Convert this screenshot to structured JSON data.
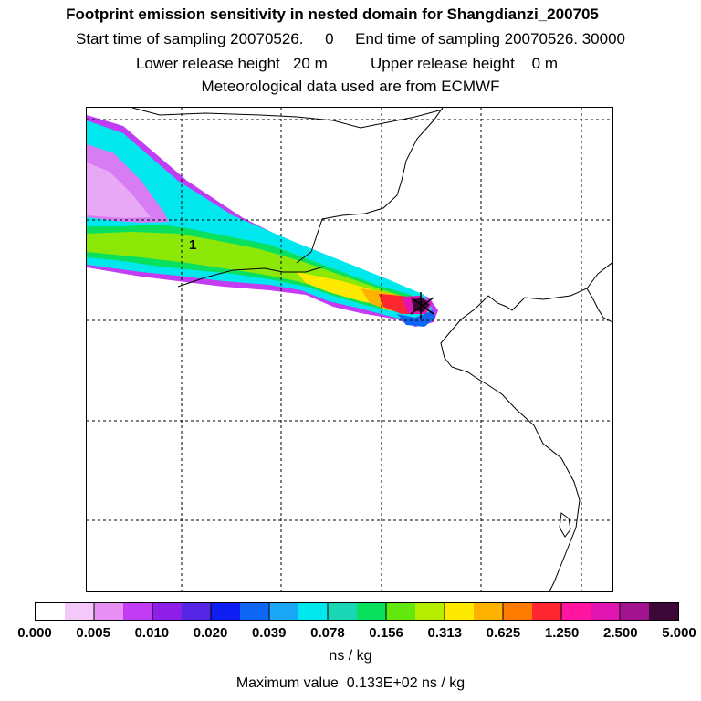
{
  "header": {
    "title": "Footprint emission sensitivity in nested domain for Shangdianzi_200705",
    "sampling_line": "Start time of sampling 20070526.     0     End time of sampling 20070526. 30000",
    "release_line": "Lower release height   20 m          Upper release height    0 m",
    "met_line": "Meteorological data used are from ECMWF"
  },
  "map": {
    "station_marker_label": "1",
    "grid": "dashed",
    "features": [
      "coastline",
      "country-borders",
      "emission-sensitivity-plume",
      "release-location-marker"
    ]
  },
  "colorbar": {
    "tick_labels": [
      "0.000",
      "0.005",
      "0.010",
      "0.020",
      "0.039",
      "0.078",
      "0.156",
      "0.313",
      "0.625",
      "1.250",
      "2.500",
      "5.000"
    ],
    "unit": "ns / kg",
    "colors": [
      "#ffffff",
      "#f4c8f8",
      "#e78ff4",
      "#c13cf2",
      "#8d1fe8",
      "#5626e6",
      "#0e1ef2",
      "#1066f4",
      "#1aa8f6",
      "#00e8ee",
      "#1ad6b4",
      "#09e05e",
      "#63e80f",
      "#b7ee00",
      "#ffe900",
      "#ffb100",
      "#ff7a00",
      "#ff2630",
      "#ff15a0",
      "#e014b0",
      "#a3138f",
      "#3c0838"
    ]
  },
  "footer": {
    "max_value": "Maximum value  0.133E+02 ns / kg"
  }
}
